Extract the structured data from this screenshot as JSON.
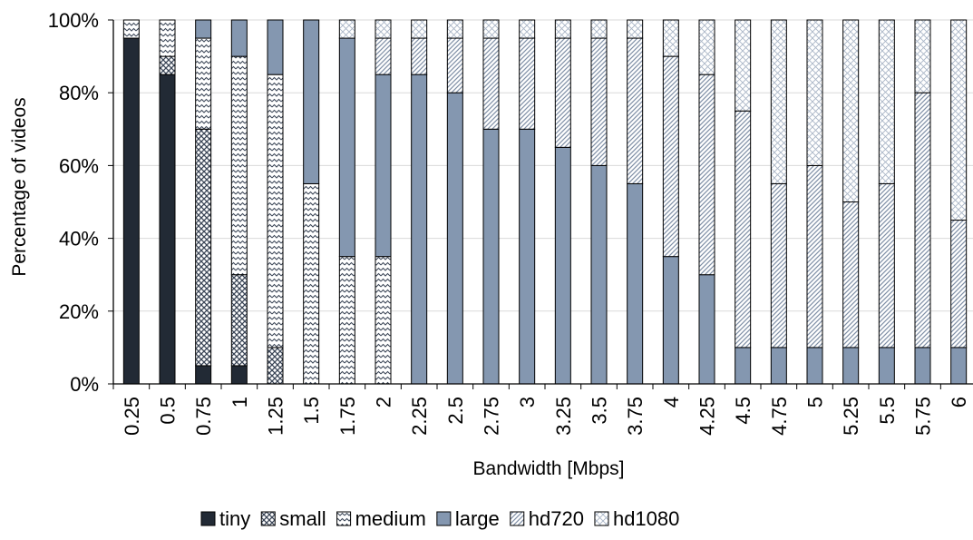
{
  "chart_data": {
    "type": "bar",
    "stacked": true,
    "normalized": true,
    "xlabel": "Bandwidth [Mbps]",
    "ylabel": "Percentage of videos",
    "ylim": [
      0,
      100
    ],
    "yticks": [
      "0%",
      "20%",
      "40%",
      "60%",
      "80%",
      "100%"
    ],
    "grid": "horizontal",
    "legend_position": "bottom",
    "categories": [
      "0.25",
      "0.5",
      "0.75",
      "1",
      "1.25",
      "1.5",
      "1.75",
      "2",
      "2.25",
      "2.5",
      "2.75",
      "3",
      "3.25",
      "3.5",
      "3.75",
      "4",
      "4.25",
      "4.5",
      "4.75",
      "5",
      "5.25",
      "5.5",
      "5.75",
      "6"
    ],
    "series": [
      {
        "name": "tiny",
        "color": "#222a35",
        "pattern": "solid",
        "values": [
          95,
          85,
          5,
          5,
          0,
          0,
          0,
          0,
          0,
          0,
          0,
          0,
          0,
          0,
          0,
          0,
          0,
          0,
          0,
          0,
          0,
          0,
          0,
          0
        ]
      },
      {
        "name": "small",
        "color": "#8497b0",
        "pattern": "crosshatch",
        "values": [
          0,
          5,
          65,
          25,
          10,
          0,
          0,
          0,
          0,
          0,
          0,
          0,
          0,
          0,
          0,
          0,
          0,
          0,
          0,
          0,
          0,
          0,
          0,
          0
        ]
      },
      {
        "name": "medium",
        "color": "#44546a",
        "pattern": "wave",
        "values": [
          5,
          10,
          25,
          60,
          75,
          55,
          35,
          35,
          0,
          0,
          0,
          0,
          0,
          0,
          0,
          0,
          0,
          0,
          0,
          0,
          0,
          0,
          0,
          0
        ]
      },
      {
        "name": "large",
        "color": "#8497b0",
        "pattern": "solid",
        "values": [
          0,
          0,
          5,
          10,
          15,
          45,
          60,
          50,
          85,
          80,
          70,
          70,
          65,
          60,
          55,
          35,
          30,
          10,
          10,
          10,
          10,
          10,
          10,
          10
        ]
      },
      {
        "name": "hd720",
        "color": "#8497b0",
        "pattern": "diagonal",
        "values": [
          0,
          0,
          0,
          0,
          0,
          0,
          0,
          10,
          10,
          15,
          25,
          25,
          30,
          35,
          40,
          55,
          55,
          65,
          45,
          50,
          40,
          45,
          70,
          35
        ]
      },
      {
        "name": "hd1080",
        "color": "#8497b0",
        "pattern": "diamond",
        "values": [
          0,
          0,
          0,
          0,
          0,
          0,
          5,
          5,
          5,
          5,
          5,
          5,
          5,
          5,
          5,
          10,
          15,
          25,
          45,
          40,
          50,
          45,
          20,
          55
        ]
      }
    ]
  }
}
